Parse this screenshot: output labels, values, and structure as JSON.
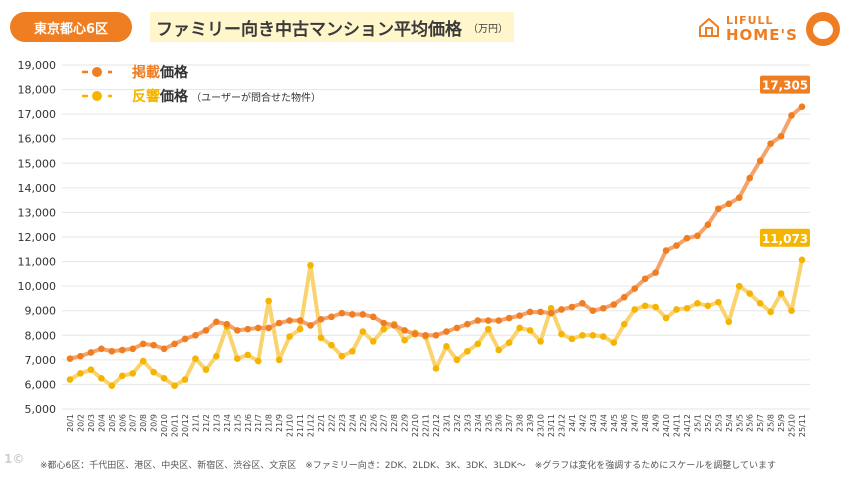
{
  "header": {
    "badge": "東京都心6区",
    "title": "ファミリー向き中古マンション平均価格",
    "unit": "（万円）"
  },
  "logo": {
    "line1": "LIFULL",
    "line2": "HOME'S"
  },
  "footnote": "※都心6区：千代田区、港区、中央区、新宿区、渋谷区、文京区　※ファミリー向き：2DK、2LDK、3K、3DK、3LDK〜　※グラフは変化を強調するためにスケールを調整しています",
  "colors": {
    "listing": "#ef7d22",
    "response": "#f5b400",
    "listing_line": "#f5a36b",
    "response_line": "#f9d36e"
  },
  "chart_data": {
    "type": "line",
    "x": [
      "20/1",
      "20/2",
      "20/3",
      "20/4",
      "20/5",
      "20/6",
      "20/7",
      "20/8",
      "20/9",
      "20/10",
      "20/11",
      "20/12",
      "21/1",
      "21/2",
      "21/3",
      "21/4",
      "21/5",
      "21/6",
      "21/7",
      "21/8",
      "21/9",
      "21/10",
      "21/11",
      "21/12",
      "22/1",
      "22/2",
      "22/3",
      "22/4",
      "22/5",
      "22/6",
      "22/7",
      "22/8",
      "22/9",
      "22/10",
      "22/11",
      "22/12",
      "23/1",
      "23/2",
      "23/3",
      "23/4",
      "23/5",
      "23/6",
      "23/7",
      "23/8",
      "23/9",
      "23/10",
      "23/11",
      "23/12",
      "24/1",
      "24/2",
      "24/3",
      "24/4",
      "24/5",
      "24/6",
      "24/7",
      "24/8",
      "24/9",
      "24/10",
      "24/11",
      "24/12",
      "25/1",
      "25/2",
      "25/3",
      "25/4",
      "25/5",
      "25/6",
      "25/7",
      "25/8",
      "25/9",
      "25/10",
      "25/11"
    ],
    "series": [
      {
        "name": "掲載価格",
        "legend_main": "掲載",
        "legend_suffix": "価格",
        "end_label": "17,305",
        "values": [
          7050,
          7150,
          7300,
          7450,
          7350,
          7400,
          7450,
          7650,
          7600,
          7450,
          7650,
          7850,
          8000,
          8200,
          8550,
          8450,
          8200,
          8250,
          8300,
          8300,
          8500,
          8600,
          8600,
          8400,
          8650,
          8750,
          8900,
          8850,
          8850,
          8750,
          8500,
          8400,
          8200,
          8050,
          8000,
          8000,
          8150,
          8300,
          8450,
          8600,
          8600,
          8600,
          8700,
          8800,
          8950,
          8950,
          8900,
          9050,
          9150,
          9300,
          9000,
          9100,
          9250,
          9550,
          9900,
          10300,
          10550,
          11450,
          11650,
          11950,
          12050,
          12500,
          13150,
          13350,
          13600,
          14400,
          15100,
          15800,
          16100,
          16950,
          17305
        ]
      },
      {
        "name": "反響価格",
        "legend_main": "反響",
        "legend_suffix": "価格",
        "legend_note": "（ユーザーが問合せた物件）",
        "end_label": "11,073",
        "values": [
          6200,
          6450,
          6600,
          6250,
          5950,
          6350,
          6450,
          6950,
          6500,
          6250,
          5950,
          6200,
          7050,
          6600,
          7150,
          8350,
          7050,
          7200,
          6950,
          9400,
          7000,
          7950,
          8250,
          10850,
          7900,
          7600,
          7150,
          7350,
          8150,
          7750,
          8250,
          8450,
          7800,
          8100,
          7950,
          6650,
          7550,
          7000,
          7350,
          7650,
          8250,
          7400,
          7700,
          8300,
          8200,
          7750,
          9100,
          8050,
          7850,
          8000,
          8000,
          7950,
          7700,
          8450,
          9050,
          9200,
          9150,
          8700,
          9050,
          9100,
          9300,
          9200,
          9350,
          8550,
          10000,
          9700,
          9300,
          8950,
          9700,
          9000,
          11073
        ]
      }
    ],
    "ylim": [
      5000,
      19000
    ],
    "yticks": [
      "5,000",
      "6,000",
      "7,000",
      "8,000",
      "9,000",
      "10,000",
      "11,000",
      "12,000",
      "13,000",
      "14,000",
      "15,000",
      "16,000",
      "17,000",
      "18,000",
      "19,000"
    ],
    "ytick_values": [
      5000,
      6000,
      7000,
      8000,
      9000,
      10000,
      11000,
      12000,
      13000,
      14000,
      15000,
      16000,
      17000,
      18000,
      19000
    ],
    "grid": true,
    "legend_position": "top-left"
  }
}
